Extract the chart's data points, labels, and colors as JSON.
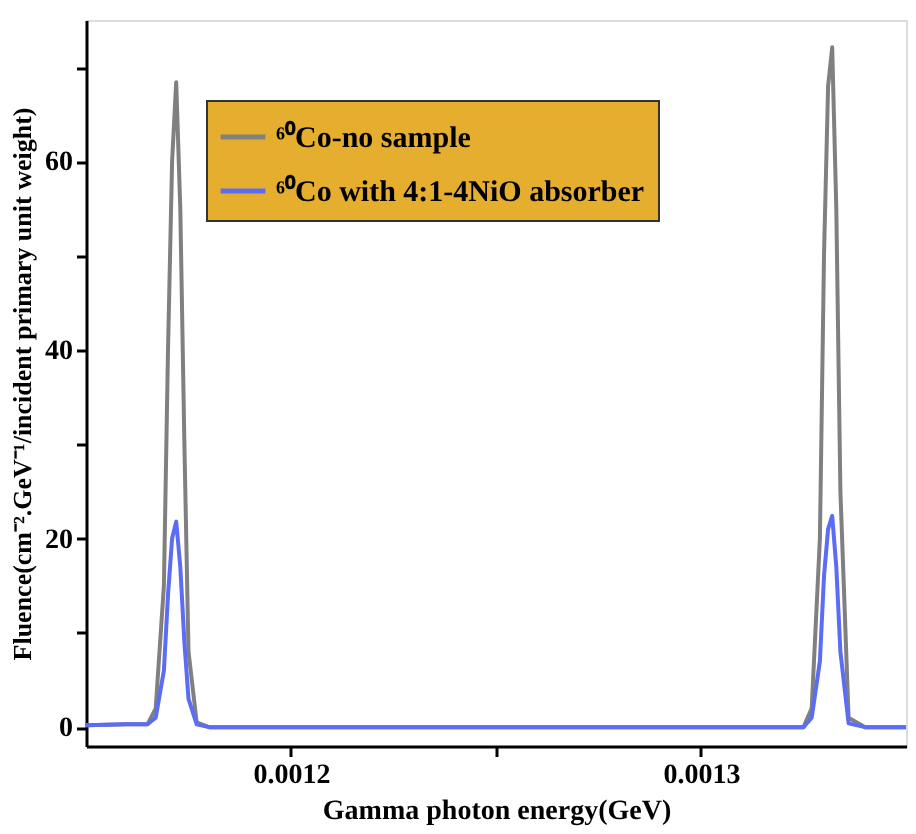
{
  "chart_data": {
    "type": "line",
    "xlabel": "Gamma photon energy(GeV)",
    "ylabel": "Fluence(cm⁻².GeV⁻¹/incident primary unit weight)",
    "x": [
      0.00115,
      0.00116,
      0.001165,
      0.001167,
      0.001169,
      0.00117,
      0.001171,
      0.001172,
      0.001173,
      0.001174,
      0.001175,
      0.001177,
      0.00118,
      0.0012,
      0.00125,
      0.0013,
      0.001325,
      0.001327,
      0.001329,
      0.00133,
      0.001331,
      0.001332,
      0.001333,
      0.001334,
      0.001336,
      0.00134,
      0.00135
    ],
    "series": [
      {
        "name": "⁶⁰Co-no sample",
        "color": "#808080",
        "values": [
          0.2,
          0.3,
          0.3,
          2,
          15,
          40,
          60,
          68.4,
          55,
          30,
          8,
          0.5,
          0,
          0,
          0,
          0,
          0,
          2,
          20,
          50,
          68,
          72.1,
          55,
          25,
          1,
          0,
          0
        ]
      },
      {
        "name": "⁶⁰Co with 4:1-4NiO absorber",
        "color": "#5b6cf5",
        "values": [
          0.2,
          0.3,
          0.3,
          1,
          6,
          14,
          20,
          21.8,
          17,
          9,
          3,
          0.3,
          0,
          0,
          0,
          0,
          0,
          1,
          7,
          16,
          21,
          22.4,
          17,
          8,
          0.4,
          0,
          0
        ]
      }
    ],
    "xlim": [
      0.00115,
      0.00135
    ],
    "xticks": [
      0.0012,
      {
        "value": 0.00125,
        "label": null
      },
      0.0013
    ],
    "ylim": [
      -2,
      75
    ],
    "yticks": [
      0,
      {
        "value": 10,
        "label": null
      },
      20,
      {
        "value": 30,
        "label": null
      },
      40,
      {
        "value": 50,
        "label": null
      },
      60,
      {
        "value": 70,
        "label": null
      }
    ],
    "grid": false,
    "legend": "top",
    "marker": "none",
    "line_style": "solid"
  }
}
